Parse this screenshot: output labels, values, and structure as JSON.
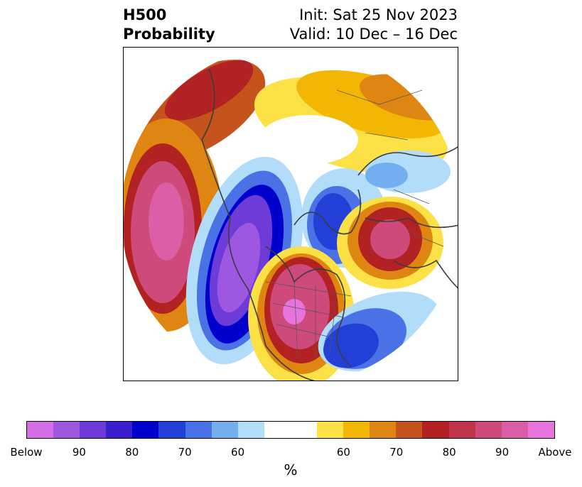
{
  "header": {
    "title_line1": "H500",
    "title_line2": "Probability",
    "init_label": "Init: Sat 25 Nov 2023",
    "valid_label": "Valid: 10 Dec – 16 Dec"
  },
  "map": {
    "projection": "north-polar-stereographic",
    "regions": "Northern Hemisphere"
  },
  "colorbar": {
    "unit": "%",
    "below_colors": [
      "#d46ee6",
      "#9d57e0",
      "#6e3ad8",
      "#3a1fcf",
      "#0000cc",
      "#2240d8",
      "#4a72e6",
      "#73aef0",
      "#b1dcfa"
    ],
    "neutral_color": "#ffffff",
    "above_colors": [
      "#fbe046",
      "#f2b705",
      "#df8511",
      "#c5531c",
      "#b22222",
      "#c1344c",
      "#cd4a7a",
      "#db5ea6",
      "#e774dc"
    ],
    "ticks": [
      "Below",
      "90",
      "80",
      "70",
      "60",
      "60",
      "70",
      "80",
      "90",
      "Above"
    ]
  }
}
